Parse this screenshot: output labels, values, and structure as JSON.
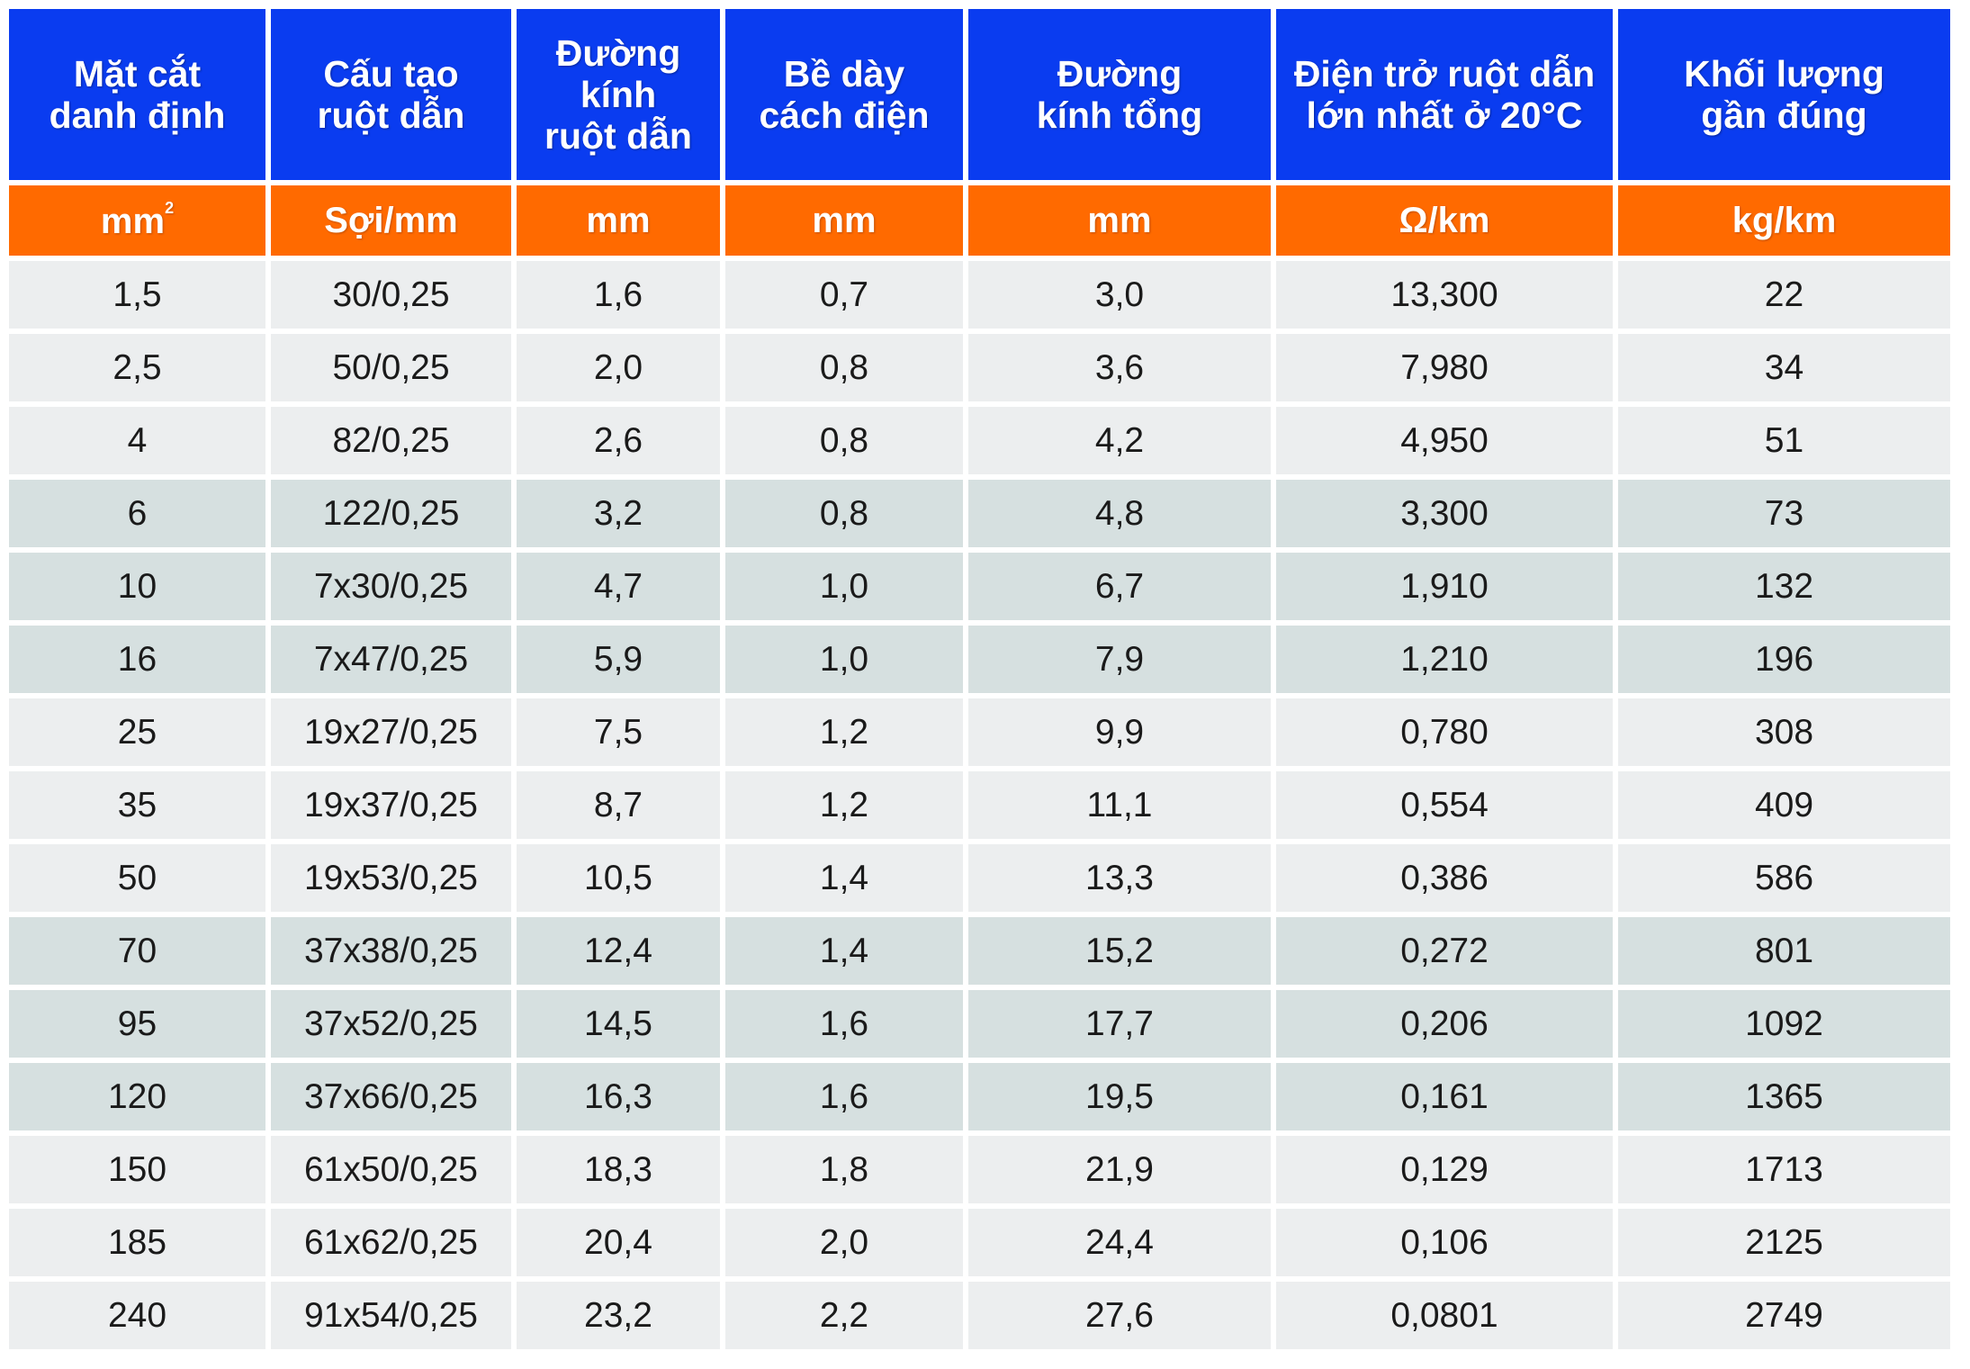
{
  "headers": [
    "Mặt cắt\ndanh định",
    "Cấu tạo\nruột dẫn",
    "Đường\nkính\nruột dẫn",
    "Bề dày\ncách điện",
    "Đường\nkính tổng",
    "Điện trở ruột dẫn\nlớn nhất ở 20°C",
    "Khối lượng\ngần đúng"
  ],
  "units": {
    "area_base": "mm",
    "area_sup": "2",
    "strand": "Sợi/mm",
    "conductor_dia": "mm",
    "insulation": "mm",
    "overall_dia": "mm",
    "resistance": "Ω/km",
    "weight": "kg/km"
  },
  "rows": [
    {
      "shade": "light",
      "cells": [
        "1,5",
        "30/0,25",
        "1,6",
        "0,7",
        "3,0",
        "13,300",
        "22"
      ]
    },
    {
      "shade": "light",
      "cells": [
        "2,5",
        "50/0,25",
        "2,0",
        "0,8",
        "3,6",
        "7,980",
        "34"
      ]
    },
    {
      "shade": "light",
      "cells": [
        "4",
        "82/0,25",
        "2,6",
        "0,8",
        "4,2",
        "4,950",
        "51"
      ]
    },
    {
      "shade": "dark",
      "cells": [
        "6",
        "122/0,25",
        "3,2",
        "0,8",
        "4,8",
        "3,300",
        "73"
      ]
    },
    {
      "shade": "dark",
      "cells": [
        "10",
        "7x30/0,25",
        "4,7",
        "1,0",
        "6,7",
        "1,910",
        "132"
      ]
    },
    {
      "shade": "dark",
      "cells": [
        "16",
        "7x47/0,25",
        "5,9",
        "1,0",
        "7,9",
        "1,210",
        "196"
      ]
    },
    {
      "shade": "light",
      "cells": [
        "25",
        "19x27/0,25",
        "7,5",
        "1,2",
        "9,9",
        "0,780",
        "308"
      ]
    },
    {
      "shade": "light",
      "cells": [
        "35",
        "19x37/0,25",
        "8,7",
        "1,2",
        "11,1",
        "0,554",
        "409"
      ]
    },
    {
      "shade": "light",
      "cells": [
        "50",
        "19x53/0,25",
        "10,5",
        "1,4",
        "13,3",
        "0,386",
        "586"
      ]
    },
    {
      "shade": "dark",
      "cells": [
        "70",
        "37x38/0,25",
        "12,4",
        "1,4",
        "15,2",
        "0,272",
        "801"
      ]
    },
    {
      "shade": "dark",
      "cells": [
        "95",
        "37x52/0,25",
        "14,5",
        "1,6",
        "17,7",
        "0,206",
        "1092"
      ]
    },
    {
      "shade": "dark",
      "cells": [
        "120",
        "37x66/0,25",
        "16,3",
        "1,6",
        "19,5",
        "0,161",
        "1365"
      ]
    },
    {
      "shade": "light",
      "cells": [
        "150",
        "61x50/0,25",
        "18,3",
        "1,8",
        "21,9",
        "0,129",
        "1713"
      ]
    },
    {
      "shade": "light",
      "cells": [
        "185",
        "61x62/0,25",
        "20,4",
        "2,0",
        "24,4",
        "0,106",
        "2125"
      ]
    },
    {
      "shade": "light",
      "cells": [
        "240",
        "91x54/0,25",
        "23,2",
        "2,2",
        "27,6",
        "0,0801",
        "2749"
      ]
    }
  ],
  "colors": {
    "header_bg": "#0a3cf0",
    "unit_bg": "#ff6a00",
    "row_light": "#eceeef",
    "row_dark": "#d6e0e0"
  }
}
